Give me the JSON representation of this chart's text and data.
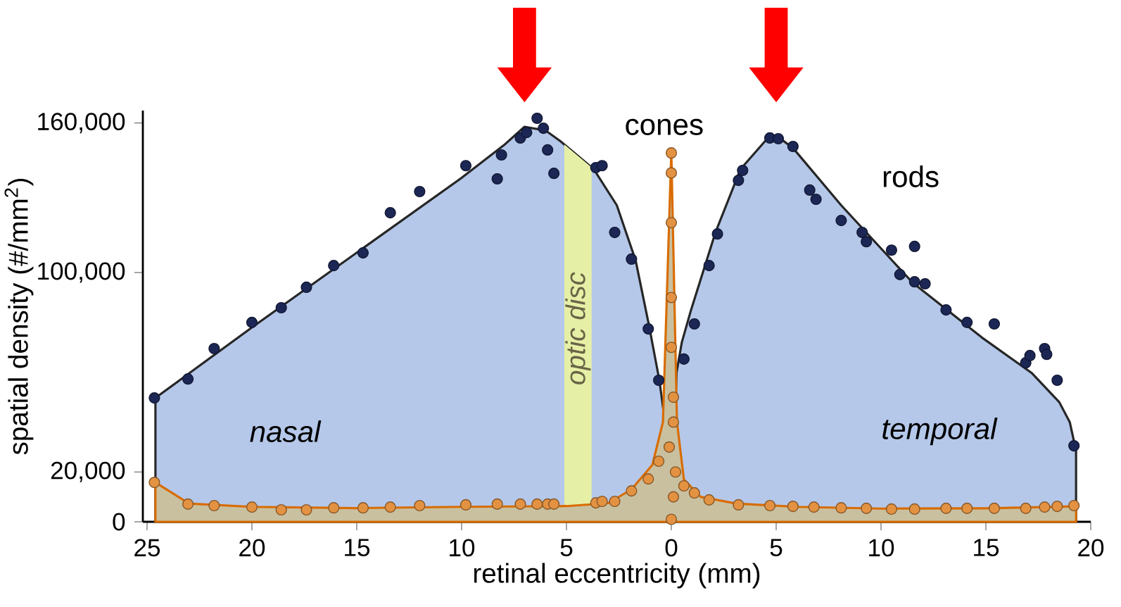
{
  "chart_data": {
    "type": "area",
    "xlabel": "retinal eccentricity (mm)",
    "ylabel": "spatial density (#/mm$^{2}$)",
    "xlim": [
      -25.2,
      20
    ],
    "ylim": [
      0,
      165000
    ],
    "xticks": [
      {
        "value": -25,
        "label": "25"
      },
      {
        "value": -20,
        "label": "20"
      },
      {
        "value": -15,
        "label": "15"
      },
      {
        "value": -10,
        "label": "10"
      },
      {
        "value": -5,
        "label": "5"
      },
      0,
      5,
      10,
      15,
      20
    ],
    "yticks": [
      0,
      {
        "value": 20000,
        "label": "20,000"
      },
      {
        "value": 100000,
        "label": "100,000"
      },
      {
        "value": 160000,
        "label": "160,000"
      }
    ],
    "bands": [
      {
        "axis": "x",
        "from": -5.1,
        "to": -3.8,
        "label": "optic disc",
        "color": "#e6efa6"
      }
    ],
    "annotations": [
      "nasal",
      "temporal"
    ],
    "series": [
      {
        "name": "rods",
        "color": "#b5c8ea",
        "x": [
          -24.6,
          -20,
          -15,
          -10,
          -8,
          -7,
          -6,
          -5.3,
          -3.7,
          -2.6,
          -1.7,
          -1.07,
          -0.57,
          -0.3,
          0,
          0.25,
          0.5,
          0.94,
          2.1,
          3.3,
          4.6,
          5.0,
          5.8,
          8.1,
          11.5,
          14.8,
          17.2,
          18.5,
          19.0,
          19.3
        ],
        "values": [
          49700,
          78000,
          108000,
          138000,
          151000,
          158500,
          157000,
          152800,
          141500,
          127000,
          104800,
          79000,
          56800,
          40000,
          0,
          60000,
          72000,
          85000,
          116000,
          141500,
          154000,
          155000,
          150000,
          127000,
          96000,
          74000,
          59600,
          48000,
          40000,
          28500
        ]
      },
      {
        "type": "scatter",
        "color": "#1c2755",
        "marker": "circle",
        "x": [
          -24.65,
          -23.05,
          -21.8,
          -20.0,
          -18.6,
          -17.4,
          -16.1,
          -14.7,
          -13.4,
          -12.0,
          -9.8,
          -8.3,
          -8.1,
          -7.2,
          -6.9,
          -6.4,
          -6.1,
          -5.9,
          -5.6,
          -3.6,
          -3.3,
          -2.7,
          -1.9,
          -1.1,
          -0.6,
          0.6,
          1.1,
          1.8,
          2.2,
          3.2,
          3.4,
          4.7,
          5.1,
          5.8,
          6.6,
          6.9,
          8.1,
          9.1,
          9.3,
          10.5,
          10.9,
          11.6,
          11.6,
          12.1,
          13.1,
          14.1,
          15.4,
          16.9,
          17.1,
          17.8,
          17.9,
          18.4,
          19.2
        ],
        "values": [
          49700,
          57300,
          69500,
          80000,
          85900,
          94100,
          102800,
          107900,
          124000,
          132500,
          142900,
          137600,
          147200,
          154000,
          156200,
          161900,
          157900,
          149200,
          139800,
          142100,
          142900,
          116100,
          105400,
          77400,
          56800,
          65300,
          79400,
          102800,
          115500,
          137000,
          141000,
          154000,
          153700,
          150600,
          133100,
          129400,
          120900,
          116100,
          112400,
          109000,
          99200,
          110500,
          96300,
          95500,
          85000,
          80000,
          79400,
          63800,
          66700,
          69500,
          67200,
          56800,
          30500
        ]
      },
      {
        "name": "cones",
        "color": "#c9c0a0",
        "x": [
          -24.6,
          -23,
          -20,
          -15,
          -10,
          -5,
          -3,
          -1.9,
          -0.9,
          -0.4,
          0,
          0.27,
          0.6,
          1.4,
          3.1,
          6,
          10,
          15,
          19.3
        ],
        "values": [
          15800,
          7300,
          6000,
          5500,
          6000,
          6300,
          7500,
          13000,
          22900,
          40000,
          148600,
          40000,
          17000,
          10000,
          7300,
          6000,
          5300,
          5400,
          6200
        ]
      },
      {
        "type": "scatter",
        "color": "#e39242",
        "marker": "circle",
        "x": [
          -24.65,
          -23.05,
          -21.8,
          -20.0,
          -18.6,
          -17.4,
          -16.1,
          -14.7,
          -13.4,
          -12.0,
          -9.8,
          -8.3,
          -7.2,
          -6.4,
          -5.9,
          -5.6,
          -3.6,
          -3.3,
          -2.7,
          -1.9,
          -1.1,
          -0.6,
          0,
          0,
          0,
          0,
          0,
          0.1,
          0.1,
          -0.1,
          0.2,
          0.1,
          0,
          0.6,
          1.1,
          1.8,
          3.2,
          4.7,
          5.8,
          6.8,
          8.1,
          9.3,
          10.5,
          11.6,
          13.1,
          14.1,
          15.4,
          16.9,
          17.8,
          18.4,
          19.2
        ],
        "values": [
          15800,
          7100,
          6500,
          5900,
          4800,
          4800,
          5600,
          5600,
          5900,
          6500,
          6800,
          7100,
          7100,
          7100,
          7100,
          7100,
          7600,
          8200,
          8200,
          12400,
          17200,
          24300,
          148000,
          140000,
          120000,
          90000,
          70000,
          50000,
          40000,
          30000,
          20000,
          10000,
          1000,
          14400,
          11600,
          8800,
          6800,
          6500,
          6200,
          5900,
          5600,
          5400,
          5100,
          5100,
          5400,
          5400,
          5400,
          5400,
          5900,
          6200,
          6500
        ]
      }
    ]
  }
}
